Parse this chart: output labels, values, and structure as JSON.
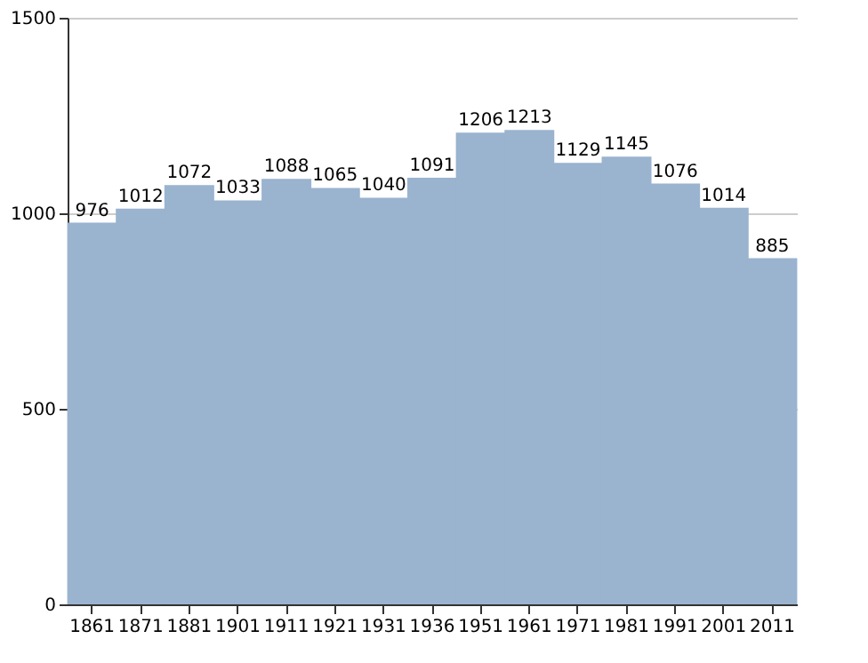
{
  "chart_data": {
    "type": "bar",
    "categories": [
      "1861",
      "1871",
      "1881",
      "1901",
      "1911",
      "1921",
      "1931",
      "1936",
      "1951",
      "1961",
      "1971",
      "1981",
      "1991",
      "2001",
      "2011"
    ],
    "values": [
      976,
      1012,
      1072,
      1033,
      1088,
      1065,
      1040,
      1091,
      1206,
      1213,
      1129,
      1145,
      1076,
      1014,
      885
    ],
    "color": "#9ab3cf",
    "ylim": [
      0,
      1500
    ],
    "yticks": [
      0,
      500,
      1000,
      1500
    ],
    "grid": "y",
    "data_labels": true
  }
}
